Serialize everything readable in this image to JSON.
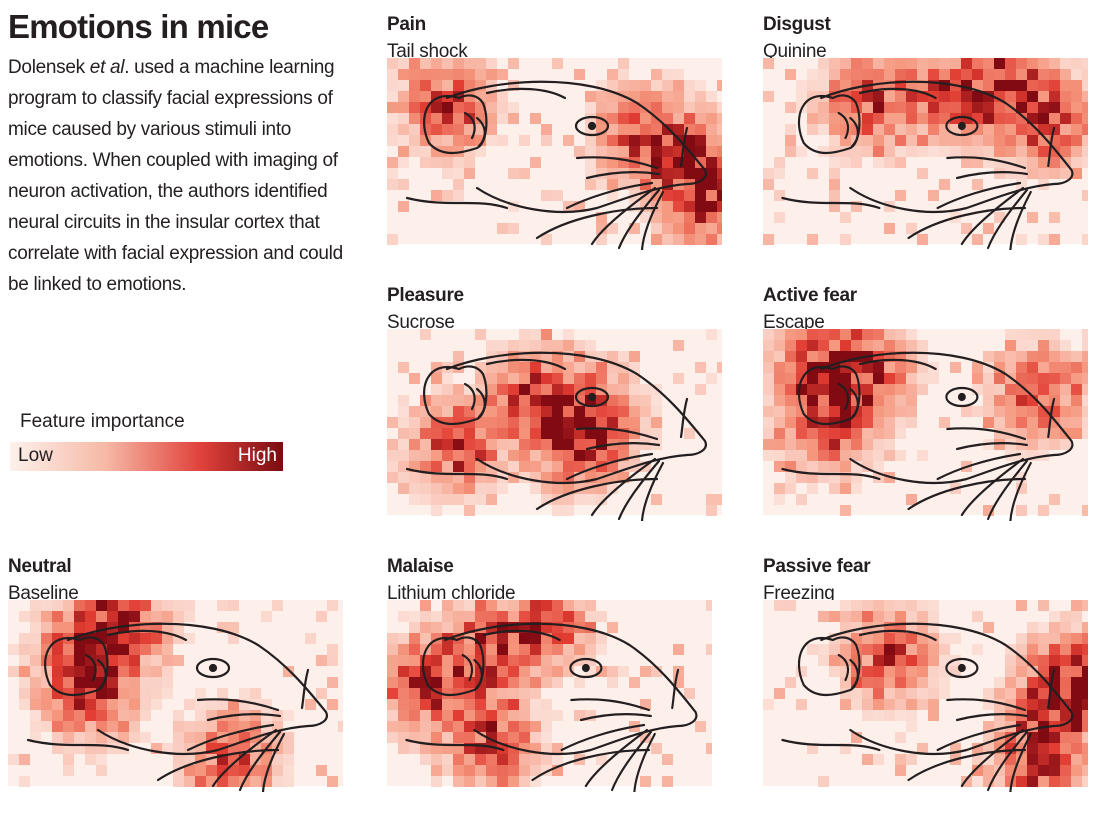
{
  "title": "Emotions in mice",
  "description": [
    "Dolensek ",
    "et al",
    ". used a machine learning program to classify facial expressions of mice caused by various stimuli into emotions. When coupled with imaging of neuron activation, the authors identified neural circuits in the insular cortex that correlate with facial expression and could be linked to emotions."
  ],
  "legend": {
    "title": "Feature importance",
    "low": "Low",
    "high": "High"
  },
  "panels": [
    {
      "title": "Pain",
      "subtitle": "Tail shock"
    },
    {
      "title": "Disgust",
      "subtitle": "Quinine"
    },
    {
      "title": "Pleasure",
      "subtitle": "Sucrose"
    },
    {
      "title": "Active fear",
      "subtitle": "Escape"
    },
    {
      "title": "Neutral",
      "subtitle": "Baseline"
    },
    {
      "title": "Malaise",
      "subtitle": "Lithium chloride"
    },
    {
      "title": "Passive fear",
      "subtitle": "Freezing"
    }
  ]
}
